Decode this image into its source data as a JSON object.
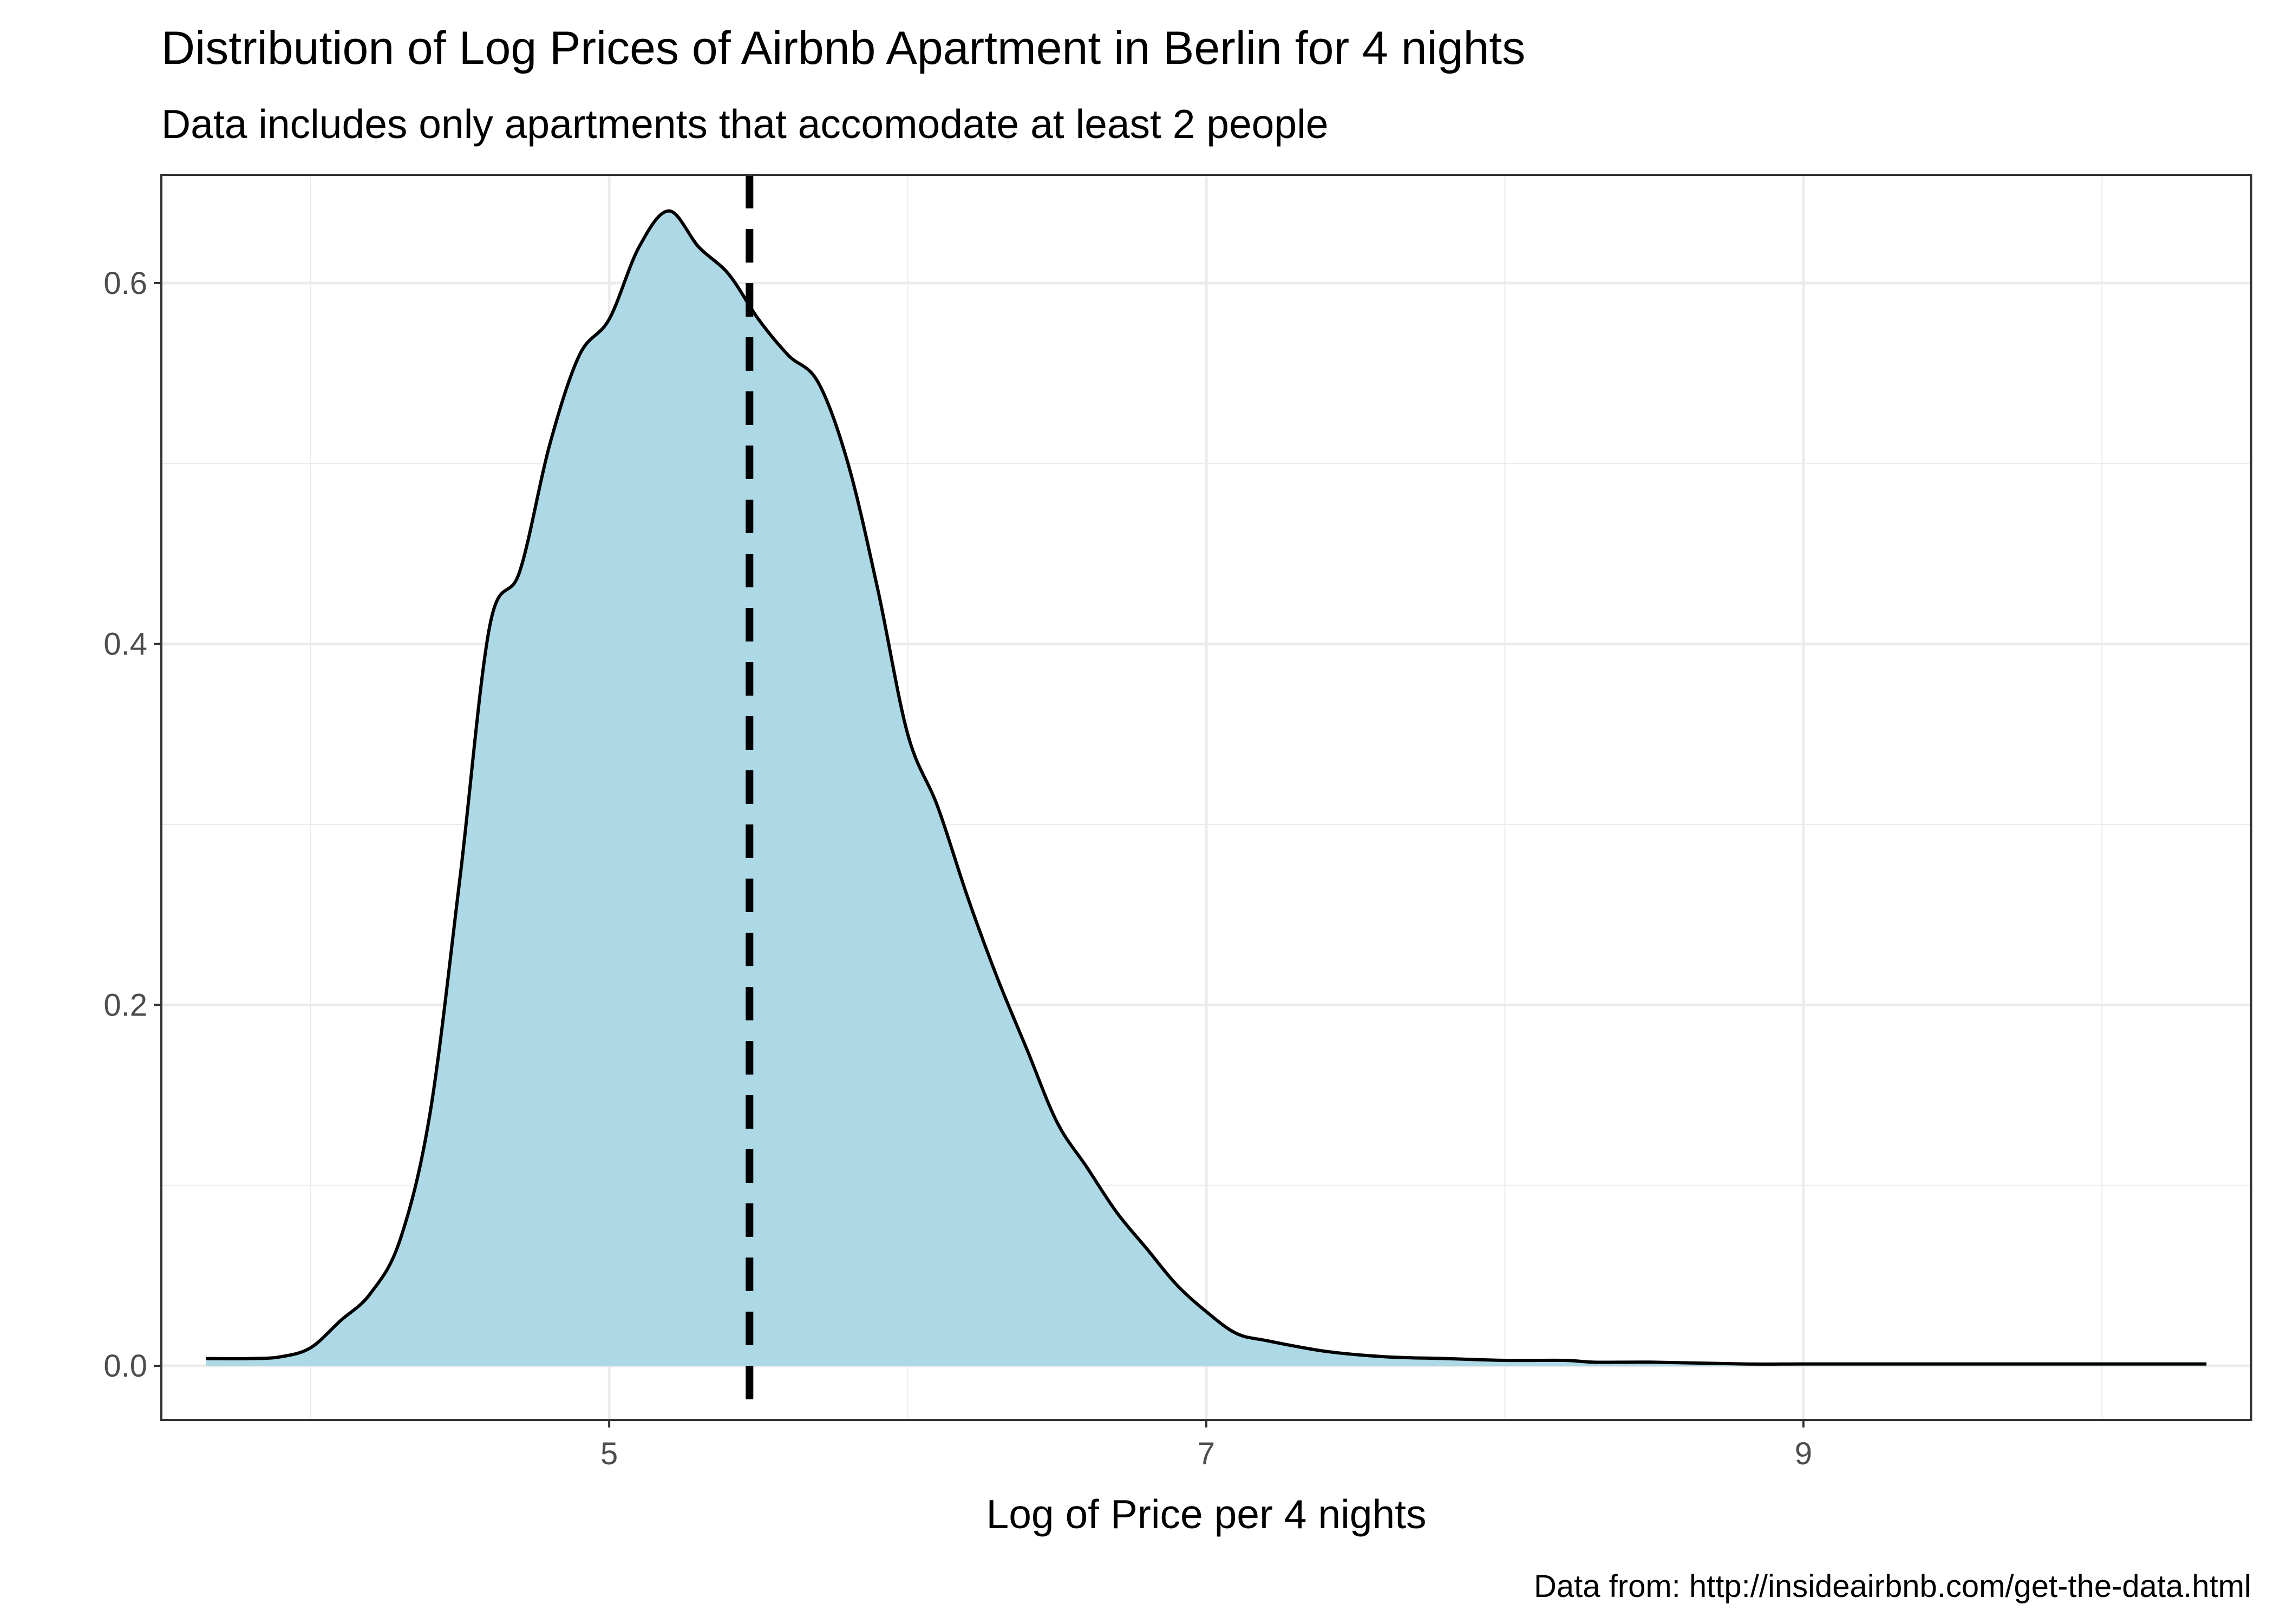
{
  "chart_data": {
    "type": "area",
    "title": "Distribution of Log Prices of Airbnb Apartment in Berlin for 4 nights",
    "subtitle": "Data includes only apartments that accomodate at least 2 people",
    "xlabel": "Log of Price per 4 nights",
    "ylabel": "",
    "caption": "Data from: http://insideairbnb.com/get-the-data.html",
    "xlim": [
      3.5,
      10.5
    ],
    "ylim": [
      -0.03,
      0.66
    ],
    "x_ticks": [
      5,
      7,
      9
    ],
    "x_tick_labels": [
      "5",
      "7",
      "9"
    ],
    "y_ticks": [
      0.0,
      0.2,
      0.4,
      0.6
    ],
    "y_tick_labels": [
      "0.0",
      "0.2",
      "0.4",
      "0.6"
    ],
    "grid": true,
    "legend": "none",
    "fill_color": "#add8e6",
    "line_color": "#000000",
    "vline": {
      "x": 5.47,
      "style": "dashed"
    },
    "series": [
      {
        "x": [
          3.65,
          3.8,
          3.9,
          4.0,
          4.1,
          4.2,
          4.3,
          4.4,
          4.5,
          4.6,
          4.7,
          4.8,
          4.9,
          5.0,
          5.1,
          5.2,
          5.3,
          5.4,
          5.5,
          5.6,
          5.7,
          5.8,
          5.9,
          6.0,
          6.1,
          6.2,
          6.3,
          6.4,
          6.5,
          6.6,
          6.7,
          6.8,
          6.9,
          7.0,
          7.1,
          7.2,
          7.4,
          7.6,
          7.8,
          8.0,
          8.2,
          8.3,
          8.5,
          8.8,
          9.0,
          9.3,
          9.6,
          9.9,
          10.2,
          10.35
        ],
        "y": [
          0.004,
          0.004,
          0.005,
          0.01,
          0.025,
          0.04,
          0.07,
          0.14,
          0.27,
          0.41,
          0.44,
          0.51,
          0.56,
          0.58,
          0.62,
          0.64,
          0.62,
          0.605,
          0.58,
          0.56,
          0.545,
          0.5,
          0.43,
          0.35,
          0.31,
          0.26,
          0.215,
          0.175,
          0.135,
          0.11,
          0.085,
          0.065,
          0.045,
          0.03,
          0.018,
          0.014,
          0.008,
          0.005,
          0.004,
          0.003,
          0.003,
          0.002,
          0.002,
          0.001,
          0.001,
          0.001,
          0.001,
          0.001,
          0.001,
          0.001
        ]
      }
    ]
  }
}
